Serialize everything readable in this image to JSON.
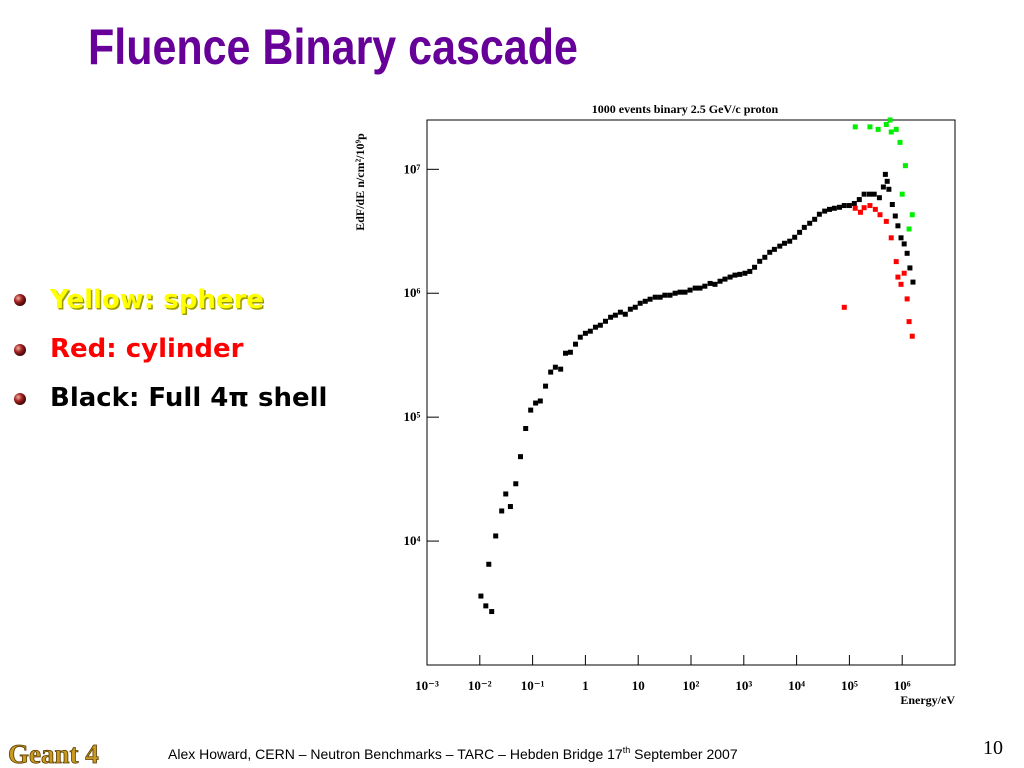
{
  "slide": {
    "title": "Fluence Binary cascade",
    "bullets": [
      "Yellow: sphere",
      "Red: cylinder",
      "Black: Full 4π shell"
    ],
    "footer": {
      "logo": "Geant 4",
      "text": "Alex Howard, CERN – Neutron Benchmarks – TARC – Hebden Bridge 17",
      "sup": "th",
      "text_end": " September 2007",
      "page": "10"
    }
  },
  "chart_data": {
    "type": "scatter",
    "title": "1000 events binary 2.5 GeV/c proton",
    "x_label": "Energy/eV",
    "y_label": "EdF/dE n/cm²/10⁹p",
    "log_x": true,
    "log_y": true,
    "xlim": [
      0.001,
      10000000
    ],
    "ylim": [
      1000,
      25000000
    ],
    "xticks": [
      {
        "value": 0.001,
        "label": "10⁻³"
      },
      {
        "value": 0.01,
        "label": "10⁻²"
      },
      {
        "value": 0.1,
        "label": "10⁻¹"
      },
      1,
      10,
      {
        "value": 100,
        "label": "10²"
      },
      {
        "value": 1000,
        "label": "10³"
      },
      {
        "value": 10000,
        "label": "10⁴"
      },
      {
        "value": 100000,
        "label": "10⁵"
      },
      {
        "value": 1000000,
        "label": "10⁶"
      }
    ],
    "yticks": [
      {
        "value": 10000,
        "label": "10⁴"
      },
      {
        "value": 100000,
        "label": "10⁵"
      },
      {
        "value": 1000000,
        "label": "10⁶"
      },
      {
        "value": 10000000,
        "label": "10⁷"
      }
    ],
    "series": [
      {
        "color": "#000000",
        "x": [
          0.0105,
          0.013,
          0.0168,
          0.0148,
          0.02,
          0.026,
          0.031,
          0.038,
          0.048,
          0.059,
          0.074,
          0.092,
          0.114,
          0.14,
          0.176,
          0.22,
          0.27,
          0.34,
          0.42,
          0.52,
          0.65,
          0.8,
          1,
          1.24,
          1.55,
          1.92,
          2.4,
          3.0,
          3.7,
          4.6,
          5.7,
          7.1,
          8.8,
          10.9,
          13.6,
          16.8,
          21,
          26,
          32,
          40,
          50,
          62,
          77,
          96,
          120,
          148,
          183,
          230,
          285,
          355,
          440,
          550,
          680,
          840,
          1050,
          1300,
          1600,
          2000,
          2500,
          3100,
          3800,
          4800,
          5900,
          7400,
          9200,
          11400,
          14000,
          17700,
          22000,
          27000,
          34000,
          42000,
          52000,
          65000,
          80000,
          100000,
          124000,
          154000,
          190000,
          240000,
          295000,
          370000,
          440000,
          480000,
          520000,
          560000,
          650000,
          740000,
          830000,
          950000,
          1090000,
          1240000,
          1400000,
          1600000
        ],
        "values": [
          3600,
          3000,
          2700,
          6500,
          11000,
          17500,
          24000,
          19000,
          29000,
          48000,
          81000,
          114000,
          130000,
          135000,
          178000,
          231000,
          253000,
          244000,
          328000,
          334000,
          388000,
          442000,
          475000,
          494000,
          532000,
          552000,
          594000,
          640000,
          665000,
          703000,
          677000,
          743000,
          771000,
          830000,
          861000,
          895000,
          929000,
          929000,
          964000,
          964000,
          1000000,
          1020000,
          1020000,
          1060000,
          1100000,
          1100000,
          1140000,
          1200000,
          1180000,
          1250000,
          1300000,
          1350000,
          1400000,
          1420000,
          1450000,
          1500000,
          1620000,
          1810000,
          1950000,
          2140000,
          2260000,
          2400000,
          2530000,
          2630000,
          2830000,
          3100000,
          3400000,
          3670000,
          3950000,
          4340000,
          4600000,
          4750000,
          4850000,
          4940000,
          5100000,
          5100000,
          5300000,
          5700000,
          6300000,
          6300000,
          6300000,
          5900000,
          7200000,
          9100000,
          8000000,
          6900000,
          5200000,
          4200000,
          3500000,
          2800000,
          2500000,
          2100000,
          1600000,
          1230000
        ]
      },
      {
        "color": "#ff0000",
        "x": [
          80000,
          129000,
          162000,
          190000,
          245000,
          310000,
          380000,
          500000,
          620000,
          770000,
          830000,
          950000,
          1090000,
          1240000,
          1350000,
          1550000
        ],
        "values": [
          770000,
          4850000,
          4500000,
          4900000,
          5100000,
          4750000,
          4300000,
          3800000,
          2800000,
          1800000,
          1350000,
          1180000,
          1450000,
          900000,
          590000,
          450000
        ]
      },
      {
        "color": "#00ee00",
        "x": [
          129000,
          245000,
          350000,
          500000,
          590000,
          620000,
          770000,
          910000,
          1150000,
          1000000,
          1350000,
          1550000
        ],
        "values": [
          22000000,
          22000000,
          21000000,
          23000000,
          25000000,
          20000000,
          21000000,
          16500000,
          10700000,
          6300000,
          3300000,
          4300000
        ]
      }
    ]
  }
}
